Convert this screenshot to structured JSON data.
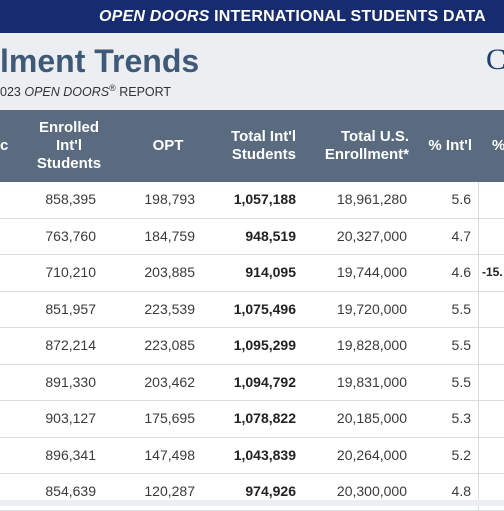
{
  "banner": {
    "part1": "OPEN DOORS",
    "part2": " INTERNATIONAL STUDENTS DATA"
  },
  "hero": {
    "title": "lment Trends",
    "title_right": "C",
    "subtitle_prefix": "023 ",
    "subtitle_italic": "OPEN DOORS",
    "subtitle_reg": "®",
    "subtitle_suffix": " REPORT"
  },
  "table": {
    "headers": {
      "col0": "c",
      "enrolled": "Enrolled Int'l Students",
      "opt": "OPT",
      "total_intl": "Total Int'l Students",
      "total_us": "Total U.S. Enrollment*",
      "pct_intl": "% Int'l",
      "col7": "%"
    },
    "rows": [
      {
        "enrolled": "858,395",
        "opt": "198,793",
        "total_intl": "1,057,188",
        "total_us": "18,961,280",
        "pct_intl": "5.6",
        "extra": ""
      },
      {
        "enrolled": "763,760",
        "opt": "184,759",
        "total_intl": "948,519",
        "total_us": "20,327,000",
        "pct_intl": "4.7",
        "extra": ""
      },
      {
        "enrolled": "710,210",
        "opt": "203,885",
        "total_intl": "914,095",
        "total_us": "19,744,000",
        "pct_intl": "4.6",
        "extra": "-15."
      },
      {
        "enrolled": "851,957",
        "opt": "223,539",
        "total_intl": "1,075,496",
        "total_us": "19,720,000",
        "pct_intl": "5.5",
        "extra": ""
      },
      {
        "enrolled": "872,214",
        "opt": "223,085",
        "total_intl": "1,095,299",
        "total_us": "19,828,000",
        "pct_intl": "5.5",
        "extra": ""
      },
      {
        "enrolled": "891,330",
        "opt": "203,462",
        "total_intl": "1,094,792",
        "total_us": "19,831,000",
        "pct_intl": "5.5",
        "extra": ""
      },
      {
        "enrolled": "903,127",
        "opt": "175,695",
        "total_intl": "1,078,822",
        "total_us": "20,185,000",
        "pct_intl": "5.3",
        "extra": ""
      },
      {
        "enrolled": "896,341",
        "opt": "147,498",
        "total_intl": "1,043,839",
        "total_us": "20,264,000",
        "pct_intl": "5.2",
        "extra": ""
      },
      {
        "enrolled": "854,639",
        "opt": "120,287",
        "total_intl": "974,926",
        "total_us": "20,300,000",
        "pct_intl": "4.8",
        "extra": ""
      }
    ]
  },
  "colors": {
    "banner": "#172c6e",
    "header_row": "#5a6b7f",
    "hero_bg": "#eceef1",
    "title": "#3f5a78"
  }
}
